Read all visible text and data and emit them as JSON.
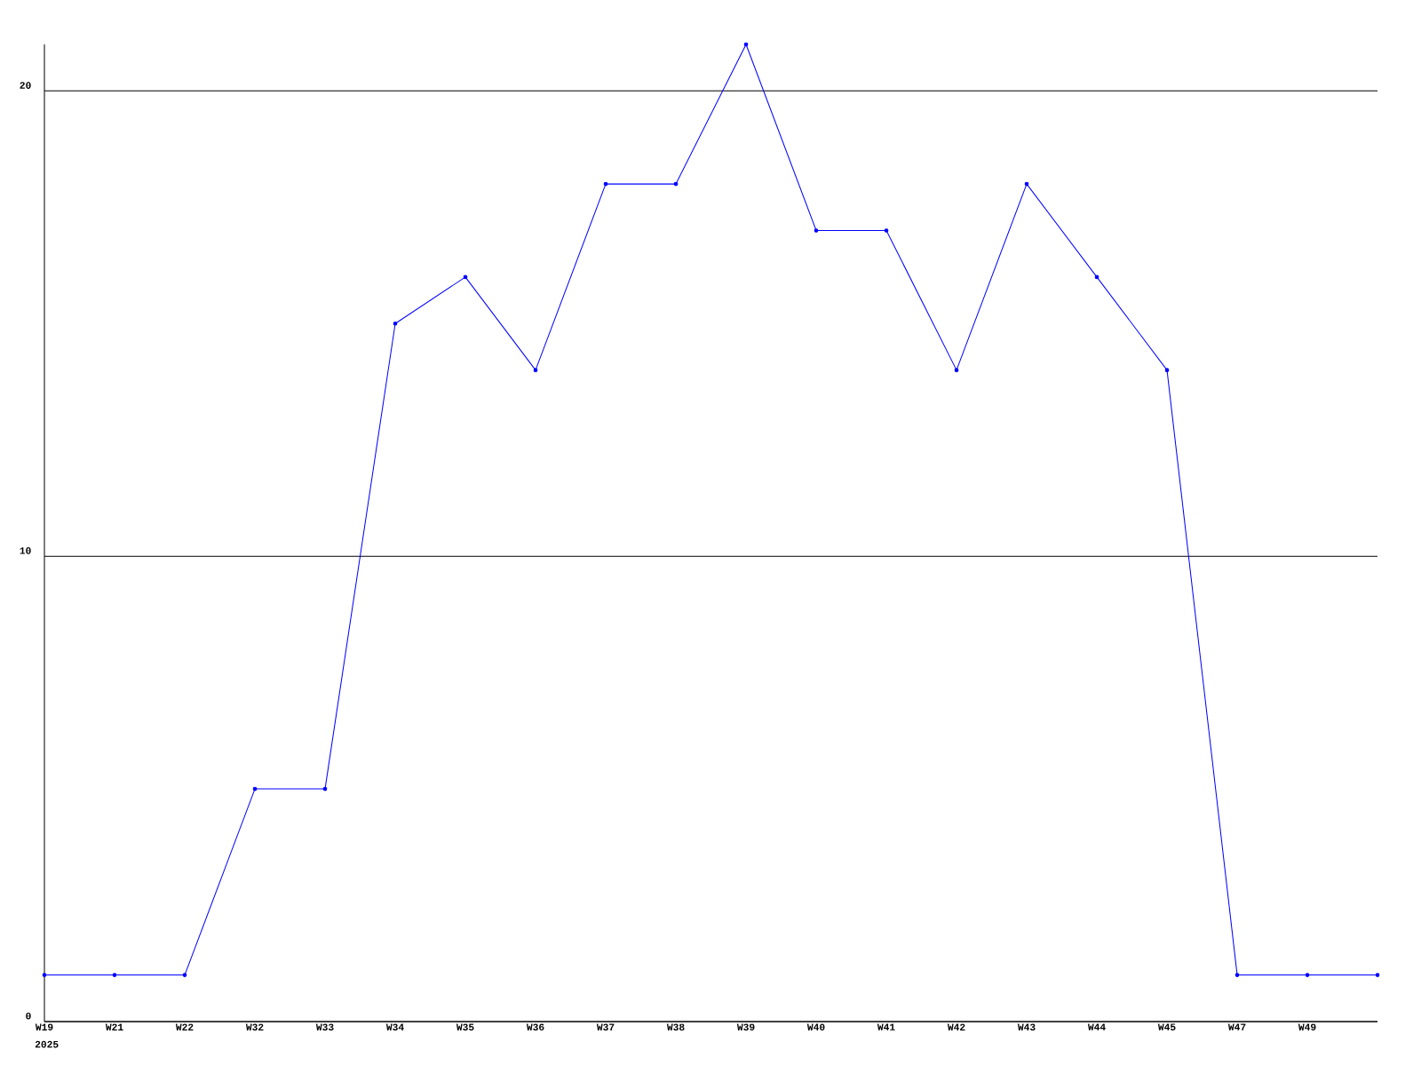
{
  "chart_data": {
    "type": "line",
    "categories": [
      "W19",
      "W21",
      "W22",
      "W32",
      "W33",
      "W34",
      "W35",
      "W36",
      "W37",
      "W38",
      "W39",
      "W40",
      "W41",
      "W42",
      "W43",
      "W44",
      "W45",
      "W47",
      "W49",
      null
    ],
    "values": [
      1,
      1,
      1,
      5,
      5,
      15,
      16,
      14,
      18,
      18,
      21,
      17,
      17,
      14,
      18,
      16,
      14,
      1,
      1,
      1
    ],
    "color": "#0000ff",
    "marker": "circle",
    "line_style": "solid",
    "ylim": [
      0,
      21
    ],
    "yticks": [
      0,
      10,
      20
    ],
    "grid": "y",
    "annotations": [
      "2025"
    ]
  }
}
